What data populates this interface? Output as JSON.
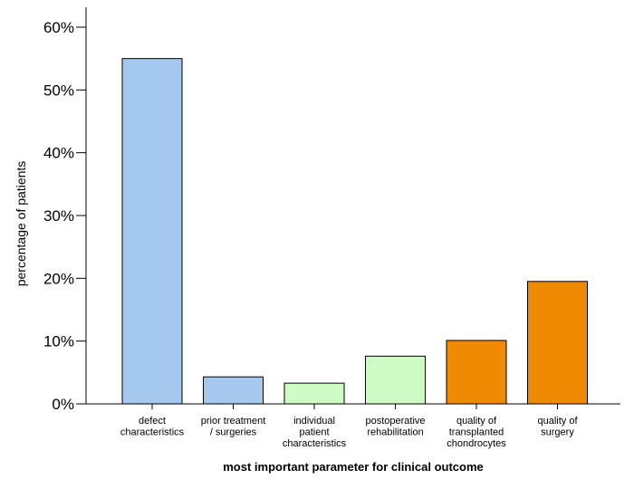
{
  "chart_data": {
    "type": "bar",
    "categories": [
      [
        "defect",
        "characteristics"
      ],
      [
        "prior treatment",
        "/ surgeries"
      ],
      [
        "individual",
        "patient",
        "characteristics"
      ],
      [
        "postoperative",
        "rehabilitation"
      ],
      [
        "quality of",
        "transplanted",
        "chondrocytes"
      ],
      [
        "quality of",
        "surgery"
      ]
    ],
    "values": [
      55.0,
      4.3,
      3.3,
      7.6,
      10.1,
      19.5
    ],
    "bar_colors": [
      "#a4c8ee",
      "#a4c8ee",
      "#cdfbc3",
      "#cdfbc3",
      "#f08a00",
      "#f08a00"
    ],
    "ylim": [
      0,
      60
    ],
    "yticks": [
      0,
      10,
      20,
      30,
      40,
      50,
      60
    ],
    "ytick_labels": [
      "0%",
      "10%",
      "20%",
      "30%",
      "40%",
      "50%",
      "60%"
    ],
    "xlabel": "most important parameter for clinical outcome",
    "ylabel": "percentage of patients",
    "grid": false
  }
}
